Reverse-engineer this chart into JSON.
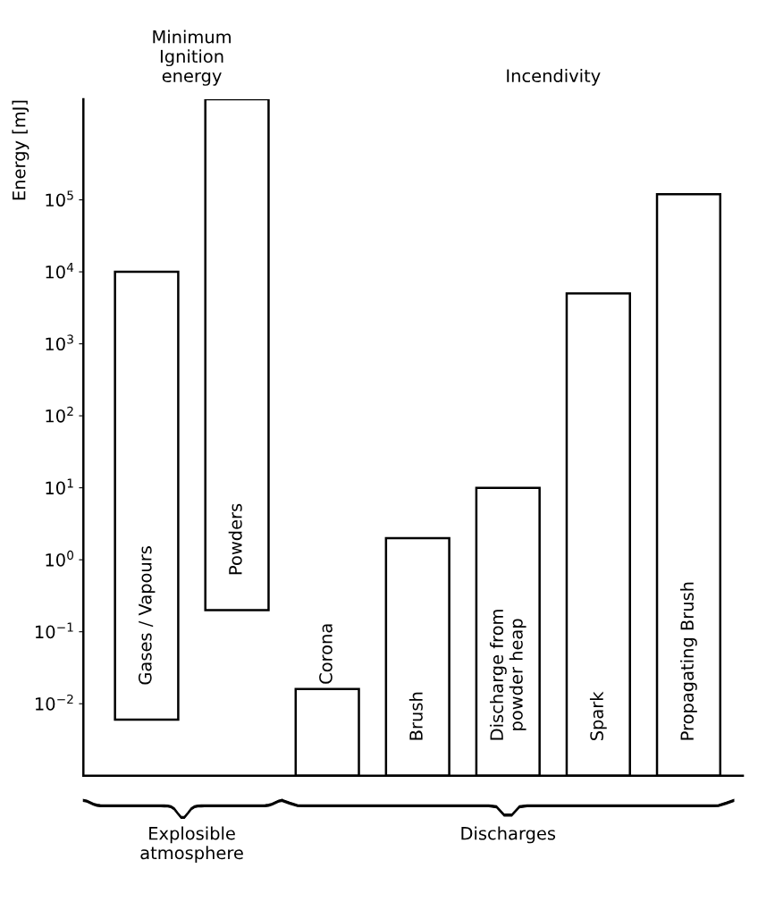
{
  "chart_data": {
    "type": "bar",
    "ylabel": "Energy [mJ]",
    "categories": [
      "Gases / Vapours",
      "Powders",
      "Corona",
      "Brush",
      "Discharge from\npowder heap",
      "Spark",
      "Propagating Brush"
    ],
    "base": [
      0.006,
      0.2,
      0.001,
      0.001,
      0.001,
      0.001,
      0.001
    ],
    "values": [
      9999.994,
      2499999.8,
      0.015,
      1.999,
      9.999,
      4999.999,
      119999.999
    ],
    "color": "#ffffff",
    "log": true,
    "ylim": [
      0.001,
      2500000
    ],
    "yticks": [
      {
        "value": 0.01,
        "label": "10$^{−2}$"
      },
      {
        "value": 0.1,
        "label": "10$^{−1}$"
      },
      {
        "value": 1,
        "label": "10$^{0}$"
      },
      {
        "value": 10,
        "label": "10$^{1}$"
      },
      {
        "value": 100,
        "label": "10$^{2}$"
      },
      {
        "value": 1000,
        "label": "10$^{3}$"
      },
      {
        "value": 10000,
        "label": "10$^{4}$"
      },
      {
        "value": 100000,
        "label": "10$^{5}$"
      }
    ],
    "grid": false,
    "annotations": [
      "Minimum\nIgnition\nenergy",
      "Incendivity",
      "Explosible\natmosphere",
      "Discharges"
    ]
  }
}
